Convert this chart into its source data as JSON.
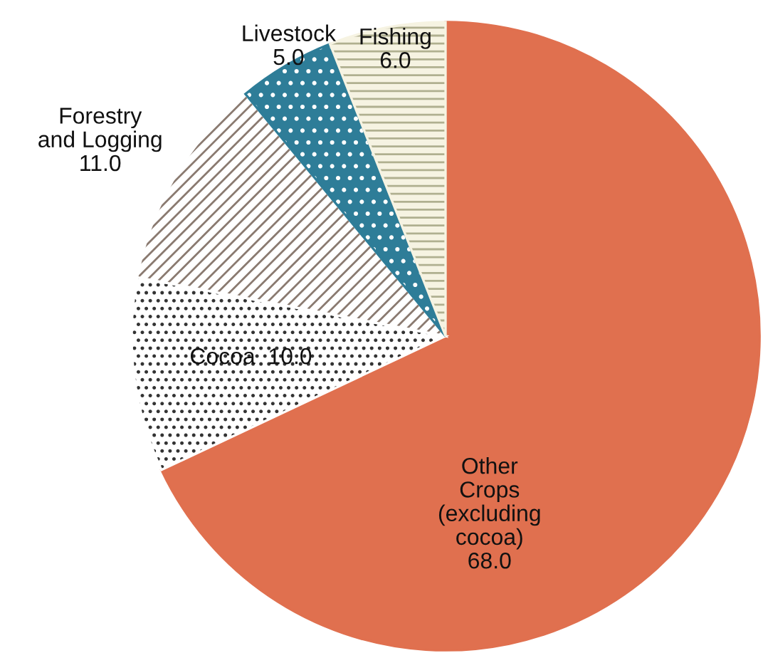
{
  "chart_data": {
    "type": "pie",
    "categories": [
      "Other\nCrops\n(excluding\ncocoa)",
      "Cocoa",
      "Forestry\nand Logging",
      "Livestock",
      "Fishing"
    ],
    "values": [
      68.0,
      10.0,
      11.0,
      5.0,
      6.0
    ],
    "value_labels": [
      "68.0",
      "10.0",
      "11.0",
      "5.0",
      "6.0"
    ],
    "colors": [
      "#e0704f",
      "#ffffff",
      "#ffffff",
      "#2e7d98",
      "#f6f3e2"
    ],
    "legend": false
  }
}
